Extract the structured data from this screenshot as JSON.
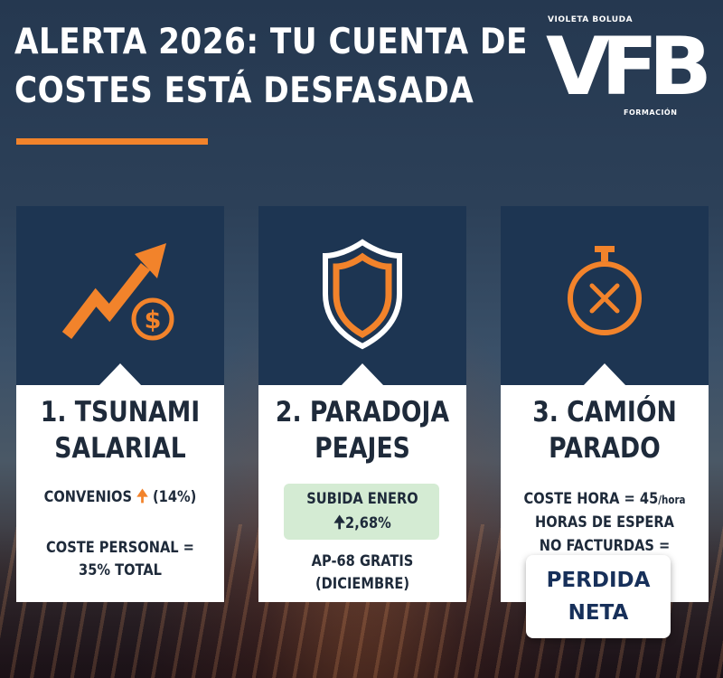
{
  "header": {
    "title_line1": "ALERTA 2026: TU CUENTA DE",
    "title_line2": "COSTES ESTÁ DESFASADA"
  },
  "logo": {
    "top_text": "VIOLETA BOLUDA",
    "mark": "VFB",
    "bottom_text": "FORMACIÓN"
  },
  "colors": {
    "accent": "#f2832b",
    "card_top": "#1d3552",
    "text_dark": "#1e2a3a",
    "pill_green": "#d4ebd3"
  },
  "cards": [
    {
      "icon": "rising-arrow-dollar-icon",
      "title_line1": "1. TSUNAMI",
      "title_line2": "SALARIAL",
      "convenios_label": "CONVENIOS",
      "convenios_arrow": "🠉",
      "convenios_value": "(14%)",
      "coste_line1": "COSTE PERSONAL =",
      "coste_line2": "35% TOTAL"
    },
    {
      "icon": "shield-icon",
      "title_line1": "2. PARADOJA",
      "title_line2": "PEAJES",
      "subida_line1": "SUBIDA ENERO",
      "subida_arrow": "🠉",
      "subida_value": "2,68%",
      "ap_line1": "AP-68 GRATIS",
      "ap_line2": "(DICIEMBRE)"
    },
    {
      "icon": "stopwatch-icon",
      "title_line1": "3. CAMIÓN",
      "title_line2": "PARADO",
      "coste_hora_label": "COSTE HORA = 45",
      "coste_hora_unit": "/hora",
      "espera_line1": "HORAS DE ESPERA",
      "espera_line2": "NO FACTURDAS =",
      "perdida_line1": "PERDIDA",
      "perdida_line2": "NETA"
    }
  ]
}
